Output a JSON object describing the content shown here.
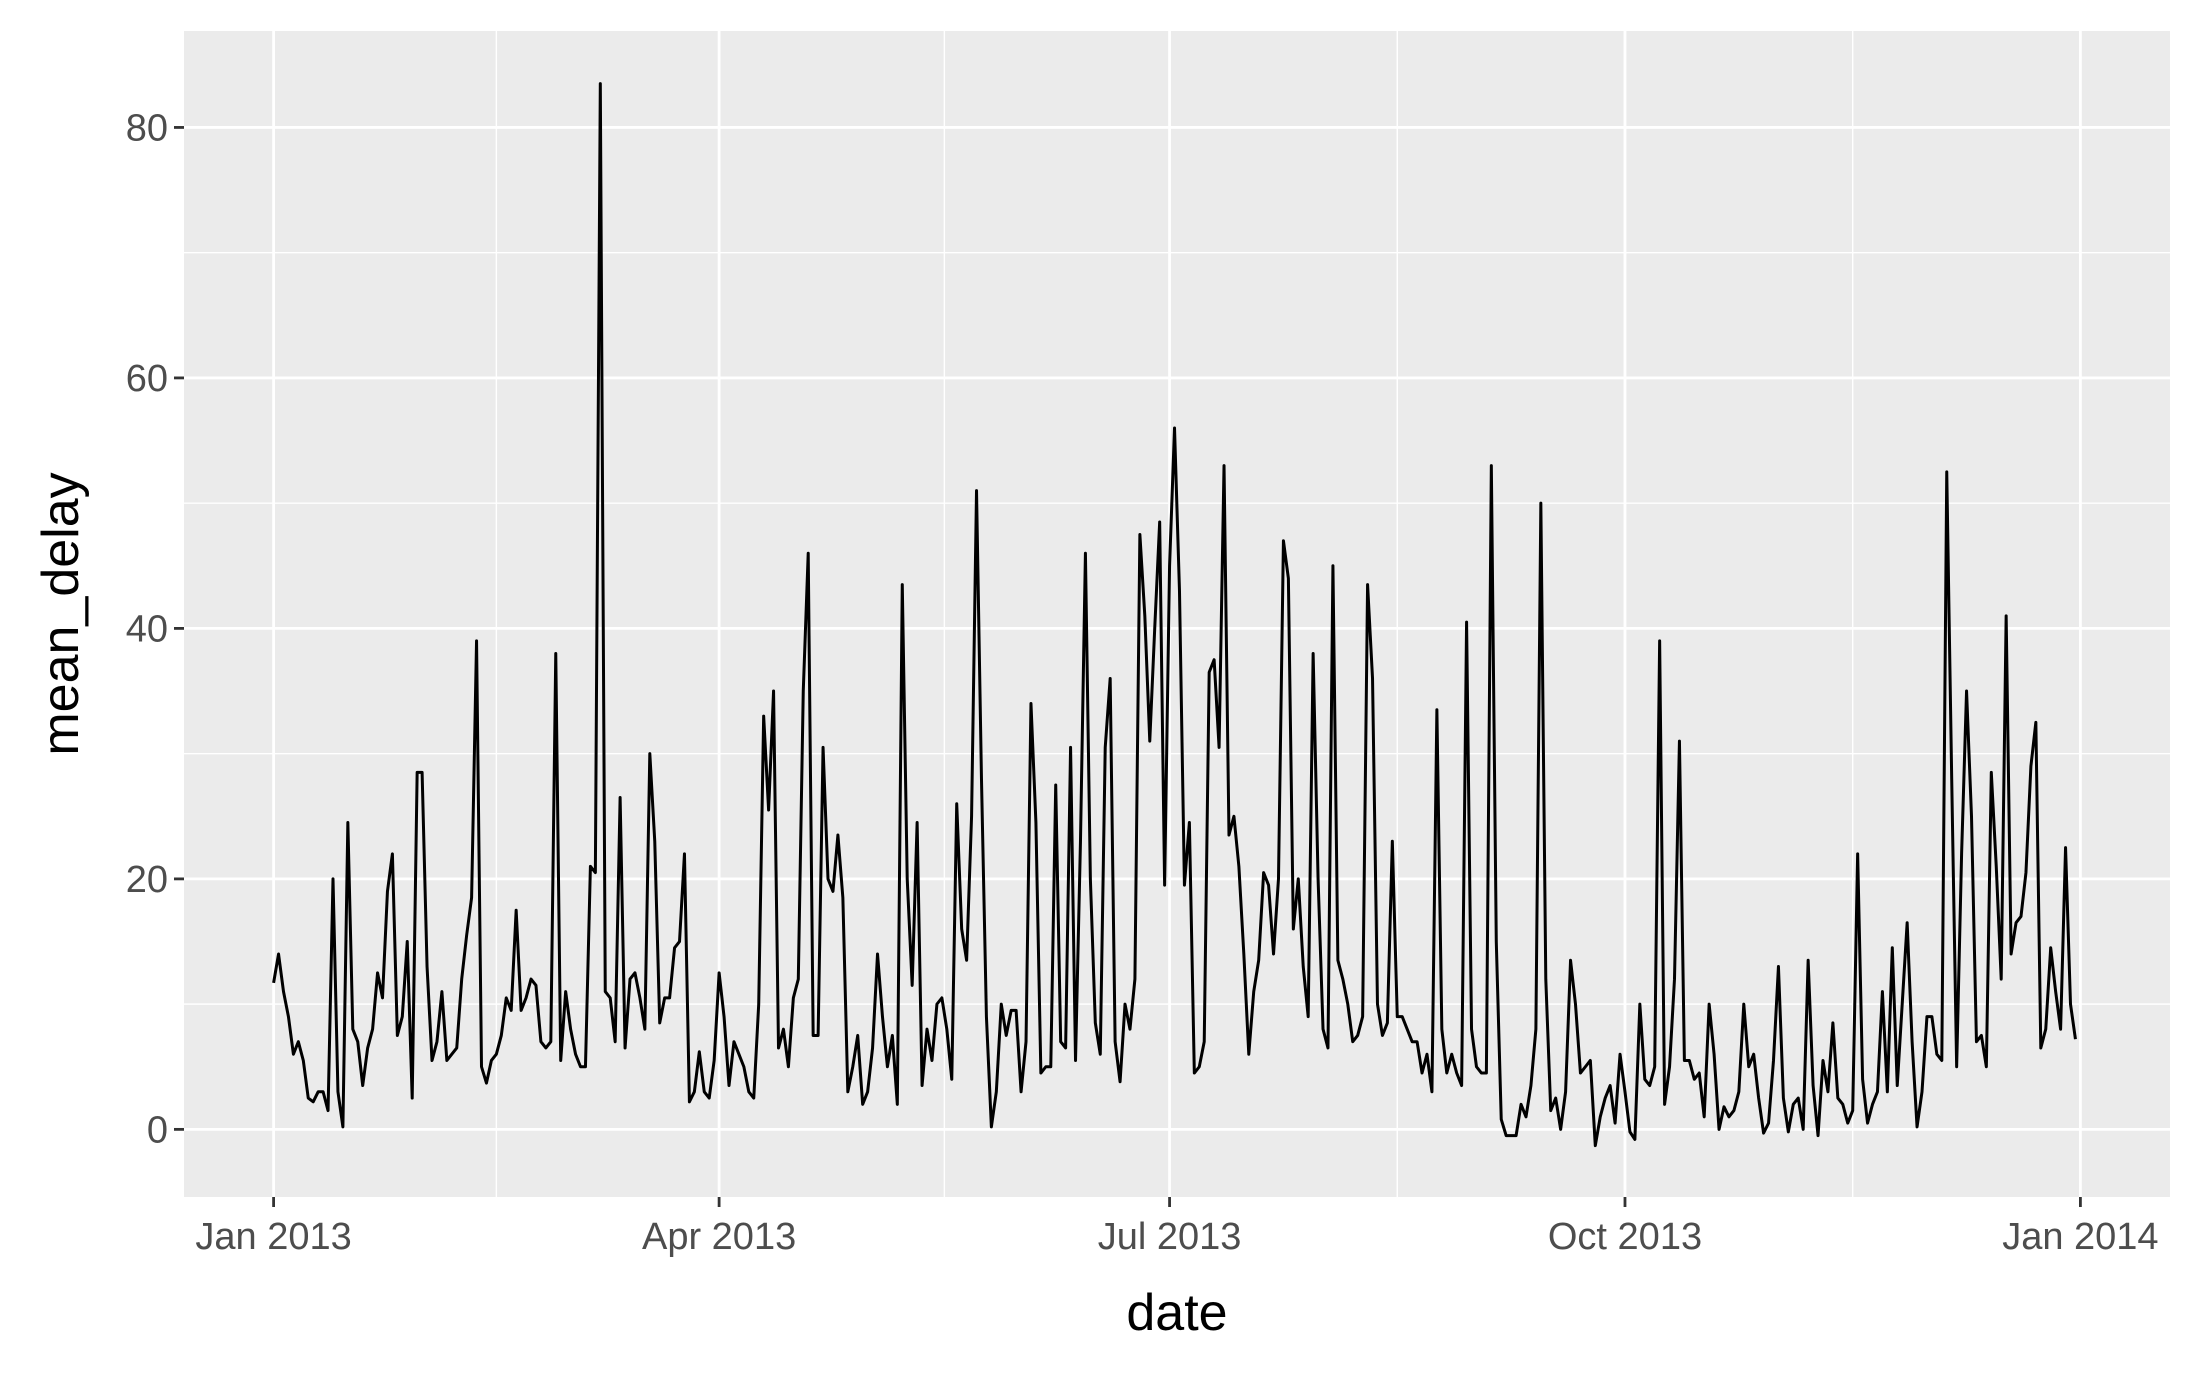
{
  "chart_data": {
    "type": "line",
    "x_label": "date",
    "y_label": "mean_delay",
    "xlim": [
      -18.1,
      383.1
    ],
    "xticks": [
      {
        "value": 0,
        "label": "Jan 2013"
      },
      {
        "value": 90,
        "label": "Apr 2013"
      },
      {
        "value": 181,
        "label": "Jul 2013"
      },
      {
        "value": 273,
        "label": "Oct 2013"
      },
      {
        "value": 365,
        "label": "Jan 2014"
      }
    ],
    "ylim": [
      -5.4,
      87.7
    ],
    "yticks": [
      0,
      20,
      40,
      60,
      80
    ],
    "grid": true,
    "x": [
      0,
      1,
      2,
      3,
      4,
      5,
      6,
      7,
      8,
      9,
      10,
      11,
      12,
      13,
      14,
      15,
      16,
      17,
      18,
      19,
      20,
      21,
      22,
      23,
      24,
      25,
      26,
      27,
      28,
      29,
      30,
      31,
      32,
      33,
      34,
      35,
      36,
      37,
      38,
      39,
      40,
      41,
      42,
      43,
      44,
      45,
      46,
      47,
      48,
      49,
      50,
      51,
      52,
      53,
      54,
      55,
      56,
      57,
      58,
      59,
      60,
      61,
      62,
      63,
      64,
      65,
      66,
      67,
      68,
      69,
      70,
      71,
      72,
      73,
      74,
      75,
      76,
      77,
      78,
      79,
      80,
      81,
      82,
      83,
      84,
      85,
      86,
      87,
      88,
      89,
      90,
      91,
      92,
      93,
      94,
      95,
      96,
      97,
      98,
      99,
      100,
      101,
      102,
      103,
      104,
      105,
      106,
      107,
      108,
      109,
      110,
      111,
      112,
      113,
      114,
      115,
      116,
      117,
      118,
      119,
      120,
      121,
      122,
      123,
      124,
      125,
      126,
      127,
      128,
      129,
      130,
      131,
      132,
      133,
      134,
      135,
      136,
      137,
      138,
      139,
      140,
      141,
      142,
      143,
      144,
      145,
      146,
      147,
      148,
      149,
      150,
      151,
      152,
      153,
      154,
      155,
      156,
      157,
      158,
      159,
      160,
      161,
      162,
      163,
      164,
      165,
      166,
      167,
      168,
      169,
      170,
      171,
      172,
      173,
      174,
      175,
      176,
      177,
      178,
      179,
      180,
      181,
      182,
      183,
      184,
      185,
      186,
      187,
      188,
      189,
      190,
      191,
      192,
      193,
      194,
      195,
      196,
      197,
      198,
      199,
      200,
      201,
      202,
      203,
      204,
      205,
      206,
      207,
      208,
      209,
      210,
      211,
      212,
      213,
      214,
      215,
      216,
      217,
      218,
      219,
      220,
      221,
      222,
      223,
      224,
      225,
      226,
      227,
      228,
      229,
      230,
      231,
      232,
      233,
      234,
      235,
      236,
      237,
      238,
      239,
      240,
      241,
      242,
      243,
      244,
      245,
      246,
      247,
      248,
      249,
      250,
      251,
      252,
      253,
      254,
      255,
      256,
      257,
      258,
      259,
      260,
      261,
      262,
      263,
      264,
      265,
      266,
      267,
      268,
      269,
      270,
      271,
      272,
      273,
      274,
      275,
      276,
      277,
      278,
      279,
      280,
      281,
      282,
      283,
      284,
      285,
      286,
      287,
      288,
      289,
      290,
      291,
      292,
      293,
      294,
      295,
      296,
      297,
      298,
      299,
      300,
      301,
      302,
      303,
      304,
      305,
      306,
      307,
      308,
      309,
      310,
      311,
      312,
      313,
      314,
      315,
      316,
      317,
      318,
      319,
      320,
      321,
      322,
      323,
      324,
      325,
      326,
      327,
      328,
      329,
      330,
      331,
      332,
      333,
      334,
      335,
      336,
      337,
      338,
      339,
      340,
      341,
      342,
      343,
      344,
      345,
      346,
      347,
      348,
      349,
      350,
      351,
      352,
      353,
      354,
      355,
      356,
      357,
      358,
      359,
      360,
      361,
      362,
      363,
      364
    ],
    "series": [
      {
        "color": "#000000",
        "values": [
          11.7,
          14,
          11,
          9,
          6,
          7,
          5.5,
          2.5,
          2.2,
          3,
          3,
          1.5,
          20,
          3,
          0.2,
          24.5,
          8,
          7,
          3.5,
          6.5,
          8,
          12.5,
          10.5,
          19,
          22,
          7.5,
          9,
          15,
          2.5,
          28.5,
          28.5,
          13,
          5.5,
          7,
          11,
          5.5,
          6,
          6.5,
          12,
          15.5,
          18.5,
          39,
          5,
          3.7,
          5.5,
          6,
          7.5,
          10.5,
          9.5,
          17.5,
          9.5,
          10.5,
          12,
          11.5,
          7,
          6.5,
          7,
          38,
          5.5,
          11,
          8,
          6,
          5,
          5,
          21,
          20.5,
          83.5,
          11,
          10.5,
          7,
          26.5,
          6.5,
          12,
          12.5,
          10.5,
          8,
          30,
          23,
          8.5,
          10.5,
          10.5,
          14.5,
          15,
          22,
          2.2,
          3,
          6.2,
          3,
          2.5,
          5.5,
          12.5,
          9,
          3.5,
          7,
          6,
          5,
          3,
          2.5,
          10,
          33,
          25.5,
          35,
          6.5,
          8,
          5,
          10.5,
          12,
          35,
          46,
          7.5,
          7.5,
          30.5,
          20,
          19,
          23.5,
          18.5,
          3,
          5,
          7.5,
          2,
          3,
          6.5,
          14,
          9,
          5,
          7.5,
          2,
          43.5,
          20,
          11.5,
          24.5,
          3.5,
          8,
          5.5,
          10,
          10.5,
          8,
          4,
          26,
          16,
          13.5,
          25,
          51,
          28,
          9,
          0.2,
          3,
          10,
          7.5,
          9.5,
          9.5,
          3,
          7,
          34,
          24.5,
          4.5,
          5,
          5,
          27.5,
          7,
          6.5,
          30.5,
          5.5,
          23,
          46,
          20,
          8.5,
          6,
          30.5,
          36,
          7,
          3.8,
          10,
          8,
          12,
          47.5,
          41,
          31,
          40,
          48.5,
          19.5,
          45,
          56,
          43,
          19.5,
          24.5,
          4.5,
          5,
          7,
          36.5,
          37.5,
          30.5,
          53,
          23.5,
          25,
          21,
          14,
          6,
          11,
          13.5,
          20.5,
          19.5,
          14,
          20,
          47,
          44,
          16,
          20,
          13,
          9,
          38,
          20,
          8,
          6.5,
          45,
          13.5,
          12,
          10,
          7,
          7.5,
          9,
          43.5,
          36,
          10,
          7.5,
          8.5,
          23,
          9,
          9,
          8,
          7,
          7,
          4.5,
          6,
          3,
          33.5,
          8,
          4.5,
          6,
          4.5,
          3.5,
          40.5,
          8,
          5,
          4.5,
          4.5,
          53,
          15,
          0.8,
          -0.5,
          -0.5,
          -0.5,
          2,
          1,
          3.5,
          8,
          50,
          12,
          1.5,
          2.5,
          0,
          3,
          13.5,
          10,
          4.5,
          5,
          5.5,
          -1.3,
          1,
          2.5,
          3.5,
          0.5,
          6,
          3,
          -0.2,
          -0.8,
          10,
          4,
          3.5,
          5,
          39,
          2,
          5,
          12,
          31,
          5.5,
          5.5,
          4,
          4.5,
          1,
          10,
          6,
          0,
          1.8,
          1,
          1.5,
          3,
          10,
          5,
          6,
          2.5,
          -0.3,
          0.5,
          5.5,
          13,
          2.5,
          -0.2,
          2,
          2.5,
          0,
          13.5,
          3.5,
          -0.5,
          5.5,
          3,
          8.5,
          2.5,
          2,
          0.5,
          1.5,
          22,
          4,
          0.5,
          2,
          3,
          11,
          3,
          14.5,
          3.5,
          10,
          16.5,
          7,
          0.2,
          3,
          9,
          9,
          6,
          5.5,
          52.5,
          28,
          5,
          22,
          35,
          25,
          7,
          7.5,
          5,
          28.5,
          21,
          12,
          41,
          14,
          16.5,
          17,
          20.5,
          29,
          32.5,
          6.5,
          8,
          14.5,
          11,
          8,
          22.5,
          10,
          7.2
        ]
      }
    ]
  }
}
